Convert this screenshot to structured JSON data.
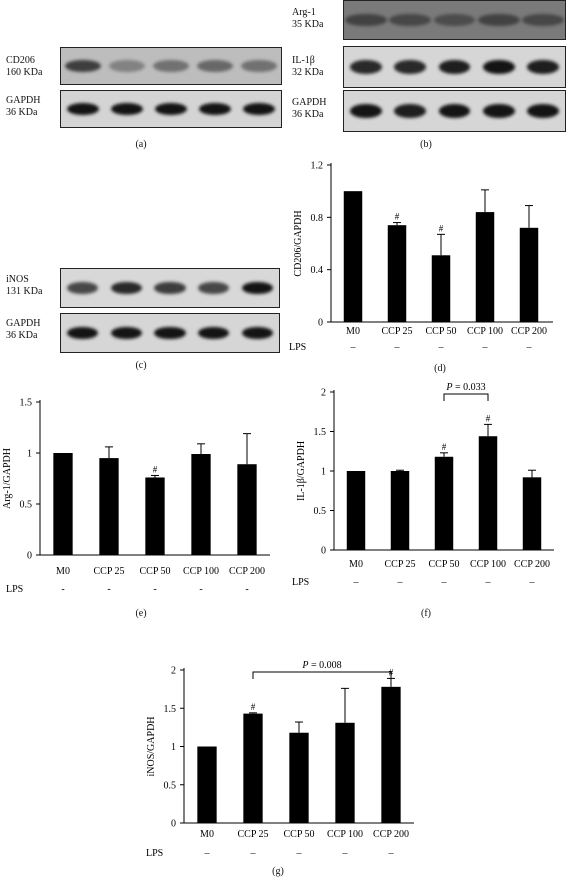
{
  "captions": {
    "a": "(a)",
    "b": "(b)",
    "c": "(c)",
    "d": "(d)",
    "e": "(e)",
    "f": "(f)",
    "g": "(g)"
  },
  "blots": {
    "a": [
      {
        "name": "CD206",
        "kda": "160 KDa"
      },
      {
        "name": "GAPDH",
        "kda": "36 KDa"
      }
    ],
    "b": [
      {
        "name": "Arg-1",
        "kda": "35 KDa"
      },
      {
        "name": "IL-1β",
        "kda": "32 KDa"
      },
      {
        "name": "GAPDH",
        "kda": "36 KDa"
      }
    ],
    "c": [
      {
        "name": "iNOS",
        "kda": "131 KDa"
      },
      {
        "name": "GAPDH",
        "kda": "36 KDa"
      }
    ]
  },
  "chart_data": [
    {
      "id": "d",
      "type": "bar",
      "categories": [
        "M0",
        "CCP 25",
        "CCP 50",
        "CCP 100",
        "CCP 200"
      ],
      "values": [
        1.0,
        0.74,
        0.51,
        0.84,
        0.72
      ],
      "errors": [
        0,
        0.02,
        0.16,
        0.17,
        0.17
      ],
      "marks": [
        "",
        "#",
        "#",
        "",
        ""
      ],
      "ylabel": "CD206/GAPDH",
      "ylim": [
        0,
        1.2
      ],
      "yticks": [
        0,
        0.4,
        0.8,
        1.2
      ],
      "ytick_labels": [
        "0",
        "0.4",
        "0.8",
        "1.2"
      ],
      "lps_label": "LPS",
      "lps_values": [
        "–",
        "–",
        "–",
        "–",
        "–"
      ],
      "bracket": null
    },
    {
      "id": "e",
      "type": "bar",
      "categories": [
        "M0",
        "CCP 25",
        "CCP 50",
        "CCP 100",
        "CCP 200"
      ],
      "values": [
        1.0,
        0.95,
        0.76,
        0.99,
        0.89
      ],
      "errors": [
        0,
        0.11,
        0.02,
        0.1,
        0.3
      ],
      "marks": [
        "",
        "",
        "#",
        "",
        ""
      ],
      "ylabel": "Arg-1/GAPDH",
      "ylim": [
        0,
        1.5
      ],
      "yticks": [
        0,
        0.5,
        1,
        1.5
      ],
      "ytick_labels": [
        "0",
        "0.5",
        "1",
        "1.5"
      ],
      "lps_label": "LPS",
      "lps_values": [
        "-",
        "-",
        "-",
        "-",
        "-"
      ],
      "bracket": null
    },
    {
      "id": "f",
      "type": "bar",
      "categories": [
        "M0",
        "CCP 25",
        "CCP 50",
        "CCP 100",
        "CCP 200"
      ],
      "values": [
        1.0,
        1.0,
        1.18,
        1.44,
        0.92
      ],
      "errors": [
        0,
        0.01,
        0.05,
        0.15,
        0.09
      ],
      "marks": [
        "",
        "",
        "#",
        "#",
        ""
      ],
      "ylabel": "IL-1β/GAPDH",
      "ylim": [
        0,
        2
      ],
      "yticks": [
        0,
        0.5,
        1,
        1.5,
        2
      ],
      "ytick_labels": [
        "0",
        "0.5",
        "1",
        "1.5",
        "2"
      ],
      "lps_label": "LPS",
      "lps_values": [
        "–",
        "–",
        "–",
        "–",
        "–"
      ],
      "bracket": {
        "from": 2,
        "to": 3,
        "p_label": "P",
        "p_value": " = 0.033"
      }
    },
    {
      "id": "g",
      "type": "bar",
      "categories": [
        "M0",
        "CCP 25",
        "CCP 50",
        "CCP 100",
        "CCP 200"
      ],
      "values": [
        1.0,
        1.43,
        1.18,
        1.31,
        1.78
      ],
      "errors": [
        0,
        0.01,
        0.14,
        0.45,
        0.11
      ],
      "marks": [
        "",
        "#",
        "",
        "",
        "#"
      ],
      "ylabel": "iNOS/GAPDH",
      "ylim": [
        0,
        2
      ],
      "yticks": [
        0,
        0.5,
        1,
        1.5,
        2
      ],
      "ytick_labels": [
        "0",
        "0.5",
        "1",
        "1.5",
        "2"
      ],
      "lps_label": "LPS",
      "lps_values": [
        "–",
        "–",
        "–",
        "–",
        "–"
      ],
      "bracket": {
        "from": 1,
        "to": 4,
        "p_label": "P",
        "p_value": " = 0.008"
      }
    }
  ]
}
